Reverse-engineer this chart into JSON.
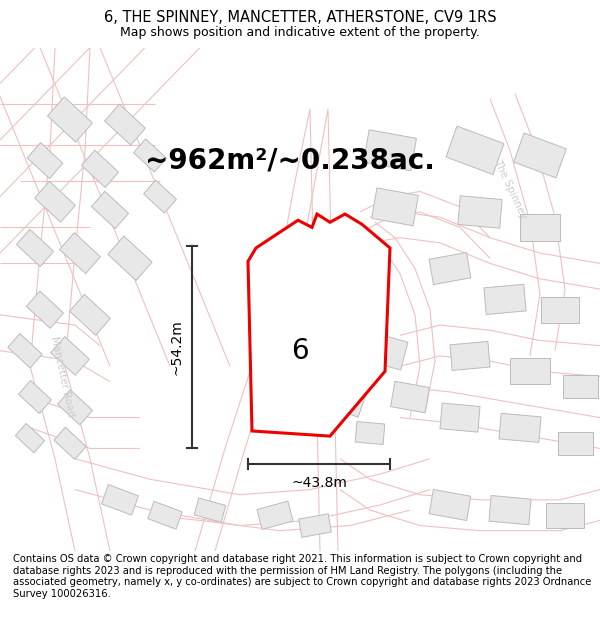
{
  "title": "6, THE SPINNEY, MANCETTER, ATHERSTONE, CV9 1RS",
  "subtitle": "Map shows position and indicative extent of the property.",
  "area_text": "~962m²/~0.238ac.",
  "dim_vertical": "~54.2m",
  "dim_horizontal": "~43.8m",
  "label_number": "6",
  "footer": "Contains OS data © Crown copyright and database right 2021. This information is subject to Crown copyright and database rights 2023 and is reproduced with the permission of HM Land Registry. The polygons (including the associated geometry, namely x, y co-ordinates) are subject to Crown copyright and database rights 2023 Ordnance Survey 100026316.",
  "map_bg": "#ffffff",
  "road_color": "#f0c0c0",
  "road_lw": 0.8,
  "building_color": "#e8e8e8",
  "building_edge": "#bbbbbb",
  "plot_color": "#ee0000",
  "plot_fill": "#ffffff",
  "dim_line_color": "#333333",
  "label_color_road": "#cccccc",
  "title_fontsize": 10.5,
  "subtitle_fontsize": 9,
  "area_fontsize": 20,
  "dim_fontsize": 10,
  "label_fontsize": 20,
  "footer_fontsize": 7.2,
  "road_label_fontsize": 8
}
